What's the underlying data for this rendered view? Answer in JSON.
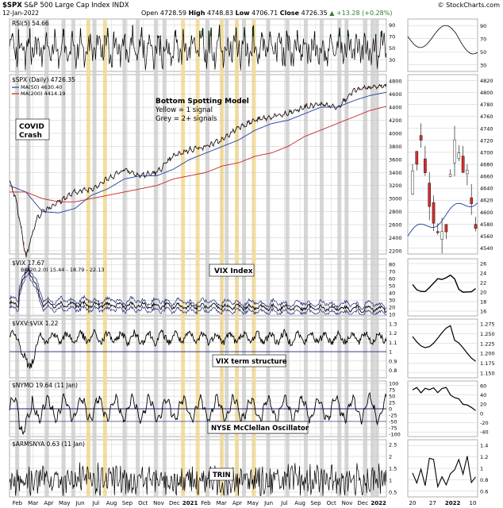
{
  "header": {
    "symbol": "$SPX",
    "name": "S&P 500 Large Cap Index",
    "exchange": "INDX",
    "date": "12-Jan-2022",
    "open_label": "Open",
    "open": "4728.59",
    "high_label": "High",
    "high": "4748.83",
    "low_label": "Low",
    "low": "4706.71",
    "close_label": "Close",
    "close": "4726.35",
    "change": "+13.28 (+0.28%)",
    "change_arrow": "▲",
    "copyright": "© StockCharts.com"
  },
  "months": [
    "Feb",
    "Mar",
    "Apr",
    "May",
    "Jun",
    "Jul",
    "Aug",
    "Sep",
    "Oct",
    "Nov",
    "Dec",
    "2021",
    "Feb",
    "Mar",
    "Apr",
    "May",
    "Jun",
    "Jul",
    "Aug",
    "Sep",
    "Oct",
    "Nov",
    "Dec",
    "2022"
  ],
  "zoom_dates": [
    "20",
    "27",
    "2022",
    "10"
  ],
  "chart_data": [
    {
      "type": "line",
      "title": "RSI(5) 54.66",
      "y_ticks": [
        30,
        50,
        70,
        90
      ],
      "ylim": [
        10,
        100
      ],
      "legend": [
        "RSI(5) 54.66"
      ]
    },
    {
      "type": "line",
      "title": "$SPX (Daily) 4726.35",
      "legend": [
        "$SPX (Daily) 4726.35",
        "MA(50) 4630.40",
        "MA(200) 4414.19"
      ],
      "y_ticks": [
        2200,
        2400,
        2600,
        2800,
        3000,
        3200,
        3400,
        3600,
        3800,
        4000,
        4200,
        4400,
        4600,
        4800
      ],
      "ylim": [
        2150,
        4900
      ],
      "zoom_y_ticks": [
        4540,
        4560,
        4580,
        4600,
        4620,
        4640,
        4660,
        4680,
        4700,
        4720,
        4740,
        4760,
        4780,
        4800,
        4820
      ],
      "x": [
        "2020-02",
        "2020-03",
        "2020-04",
        "2020-05",
        "2020-06",
        "2020-07",
        "2020-08",
        "2020-09",
        "2020-10",
        "2020-11",
        "2020-12",
        "2021-01",
        "2021-02",
        "2021-03",
        "2021-04",
        "2021-05",
        "2021-06",
        "2021-07",
        "2021-08",
        "2021-09",
        "2021-10",
        "2021-11",
        "2021-12",
        "2022-01"
      ],
      "series": [
        {
          "name": "$SPX (Daily) 4726.35",
          "values": [
            3300,
            2450,
            2800,
            2950,
            3100,
            3150,
            3300,
            3450,
            3350,
            3400,
            3650,
            3750,
            3800,
            3900,
            4100,
            4200,
            4250,
            4300,
            4400,
            4450,
            4400,
            4650,
            4700,
            4726
          ]
        },
        {
          "name": "MA(50) 4630.40",
          "values": [
            3200,
            3100,
            2800,
            2780,
            2850,
            3050,
            3150,
            3300,
            3350,
            3350,
            3450,
            3600,
            3700,
            3800,
            3900,
            4050,
            4150,
            4200,
            4300,
            4400,
            4400,
            4500,
            4580,
            4630
          ]
        },
        {
          "name": "MA(200) 4414.19",
          "values": [
            3100,
            3100,
            3000,
            2950,
            2950,
            3000,
            3050,
            3100,
            3150,
            3200,
            3300,
            3350,
            3400,
            3500,
            3550,
            3650,
            3700,
            3800,
            3950,
            4050,
            4150,
            4250,
            4350,
            4414
          ]
        }
      ],
      "annotations": [
        "Bottom Spotting Model",
        "Yellow = 1 signal",
        "Grey = 2+ signals",
        "COVID",
        "Crash"
      ]
    },
    {
      "type": "line",
      "title": "$VIX 17.67",
      "legend": [
        "$VIX 17.67",
        "BB(20,2.0) 15.44 - 18.79 - 22.13"
      ],
      "y_ticks": [
        10,
        20,
        30,
        40,
        50,
        60,
        70,
        80
      ],
      "ylim": [
        8,
        88
      ],
      "zoom_y_ticks": [
        16,
        18,
        20,
        22,
        24,
        26
      ],
      "annotations": [
        "VIX Index"
      ]
    },
    {
      "type": "line",
      "title": "$VXV:$VIX 1.22",
      "y_ticks": [
        0.8,
        0.9,
        1.0,
        1.1,
        1.2,
        1.3
      ],
      "ylim": [
        0.72,
        1.35
      ],
      "zoom_y_ticks": [
        1.15,
        1.175,
        1.2,
        1.225,
        1.25,
        1.275
      ],
      "zoom_tick_labels": [
        "1.150",
        "1.175",
        "1.200",
        "1.225",
        "1.250",
        "1.275"
      ],
      "annotations": [
        "VIX term structure"
      ]
    },
    {
      "type": "line",
      "title": "$NYMO 19.64 (11 Jan)",
      "y_ticks": [
        -100,
        -75,
        -50,
        -25,
        0,
        25,
        50,
        75,
        100
      ],
      "ylim": [
        -110,
        110
      ],
      "zoom_y_ticks": [
        -40,
        -20,
        0,
        20,
        40,
        60
      ],
      "annotations": [
        "NYSE McClellan Oscillator"
      ]
    },
    {
      "type": "line",
      "title": "$ARMSNYA 0.63 (11 Jan)",
      "y_ticks": [
        0.5,
        1.0,
        1.5,
        2.0,
        2.5
      ],
      "ylim": [
        0.3,
        2.7
      ],
      "zoom_y_ticks": [
        0.6,
        0.8,
        1.0,
        1.2,
        1.4
      ],
      "annotations": [
        "TRIN"
      ]
    }
  ],
  "signals": {
    "yellow_band_fractions": [
      0.204,
      0.248,
      0.455,
      0.494,
      0.558,
      0.598,
      0.643
    ],
    "grey_band_fractions": [
      0.015,
      0.045,
      0.093,
      0.138,
      0.164,
      0.22,
      0.3,
      0.335,
      0.383,
      0.406,
      0.52,
      0.571,
      0.617,
      0.681,
      0.732,
      0.781,
      0.823,
      0.87,
      0.889,
      0.939,
      0.958,
      0.969
    ]
  },
  "colors": {
    "grid": "#c8c8c8",
    "yellow_band": "#f3dc99",
    "grey_band": "#cfcfcf",
    "rsi_fill": "#2e7d32",
    "price": "#000000",
    "ma50": "#1f3fa0",
    "ma200": "#c62828",
    "candle_up": "#ffffff",
    "candle_down": "#d32f2f",
    "navy_line": "#1a237e"
  }
}
